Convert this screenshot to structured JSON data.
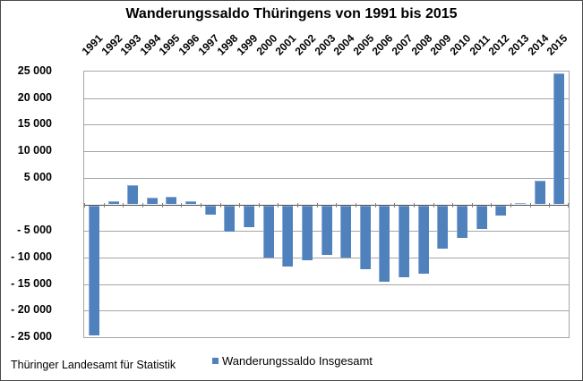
{
  "title": "Wanderungssaldo Thüringens von 1991 bis 2015",
  "source_note": "Thüringer Landesamt für Statistik",
  "legend": {
    "label": "Wanderungssaldo Insgesamt",
    "marker_color": "#4F81BD"
  },
  "colors": {
    "background": "#FFFFFF",
    "bar": "#4F81BD",
    "gridline": "#A6A6A6",
    "axis": "#4D4D4D",
    "plot_border": "#A6A6A6",
    "frame": "#4A4A4A"
  },
  "chart_data": {
    "type": "bar",
    "title": "Wanderungssaldo Thüringens von 1991 bis 2015",
    "xlabel": "",
    "ylabel": "",
    "grid": true,
    "legend_position": "bottom",
    "categories": [
      "1991",
      "1992",
      "1993",
      "1994",
      "1995",
      "1996",
      "1997",
      "1998",
      "1999",
      "2000",
      "2001",
      "2002",
      "2003",
      "2004",
      "2005",
      "2006",
      "2007",
      "2008",
      "2009",
      "2010",
      "2011",
      "2012",
      "2013",
      "2014",
      "2015"
    ],
    "series": [
      {
        "name": "Wanderungssaldo Insgesamt",
        "values": [
          -24500,
          600,
          3600,
          1300,
          1400,
          650,
          -1800,
          -5000,
          -4200,
          -9900,
          -11600,
          -10400,
          -9300,
          -9900,
          -12000,
          -14400,
          -13600,
          -12900,
          -8200,
          -6100,
          -4500,
          -1900,
          200,
          4500,
          24600
        ]
      }
    ],
    "ylim": [
      -25000,
      25000
    ],
    "ytick_step": 5000,
    "yticks": [
      {
        "value": 25000,
        "label": "25 000"
      },
      {
        "value": 20000,
        "label": "20 000"
      },
      {
        "value": 15000,
        "label": "15 000"
      },
      {
        "value": 10000,
        "label": "10 000"
      },
      {
        "value": 5000,
        "label": "5 000"
      },
      {
        "value": -5000,
        "label": "- 5 000"
      },
      {
        "value": -10000,
        "label": "- 10 000"
      },
      {
        "value": -15000,
        "label": "- 15 000"
      },
      {
        "value": -20000,
        "label": "- 20 000"
      },
      {
        "value": -25000,
        "label": "- 25 000"
      }
    ]
  }
}
